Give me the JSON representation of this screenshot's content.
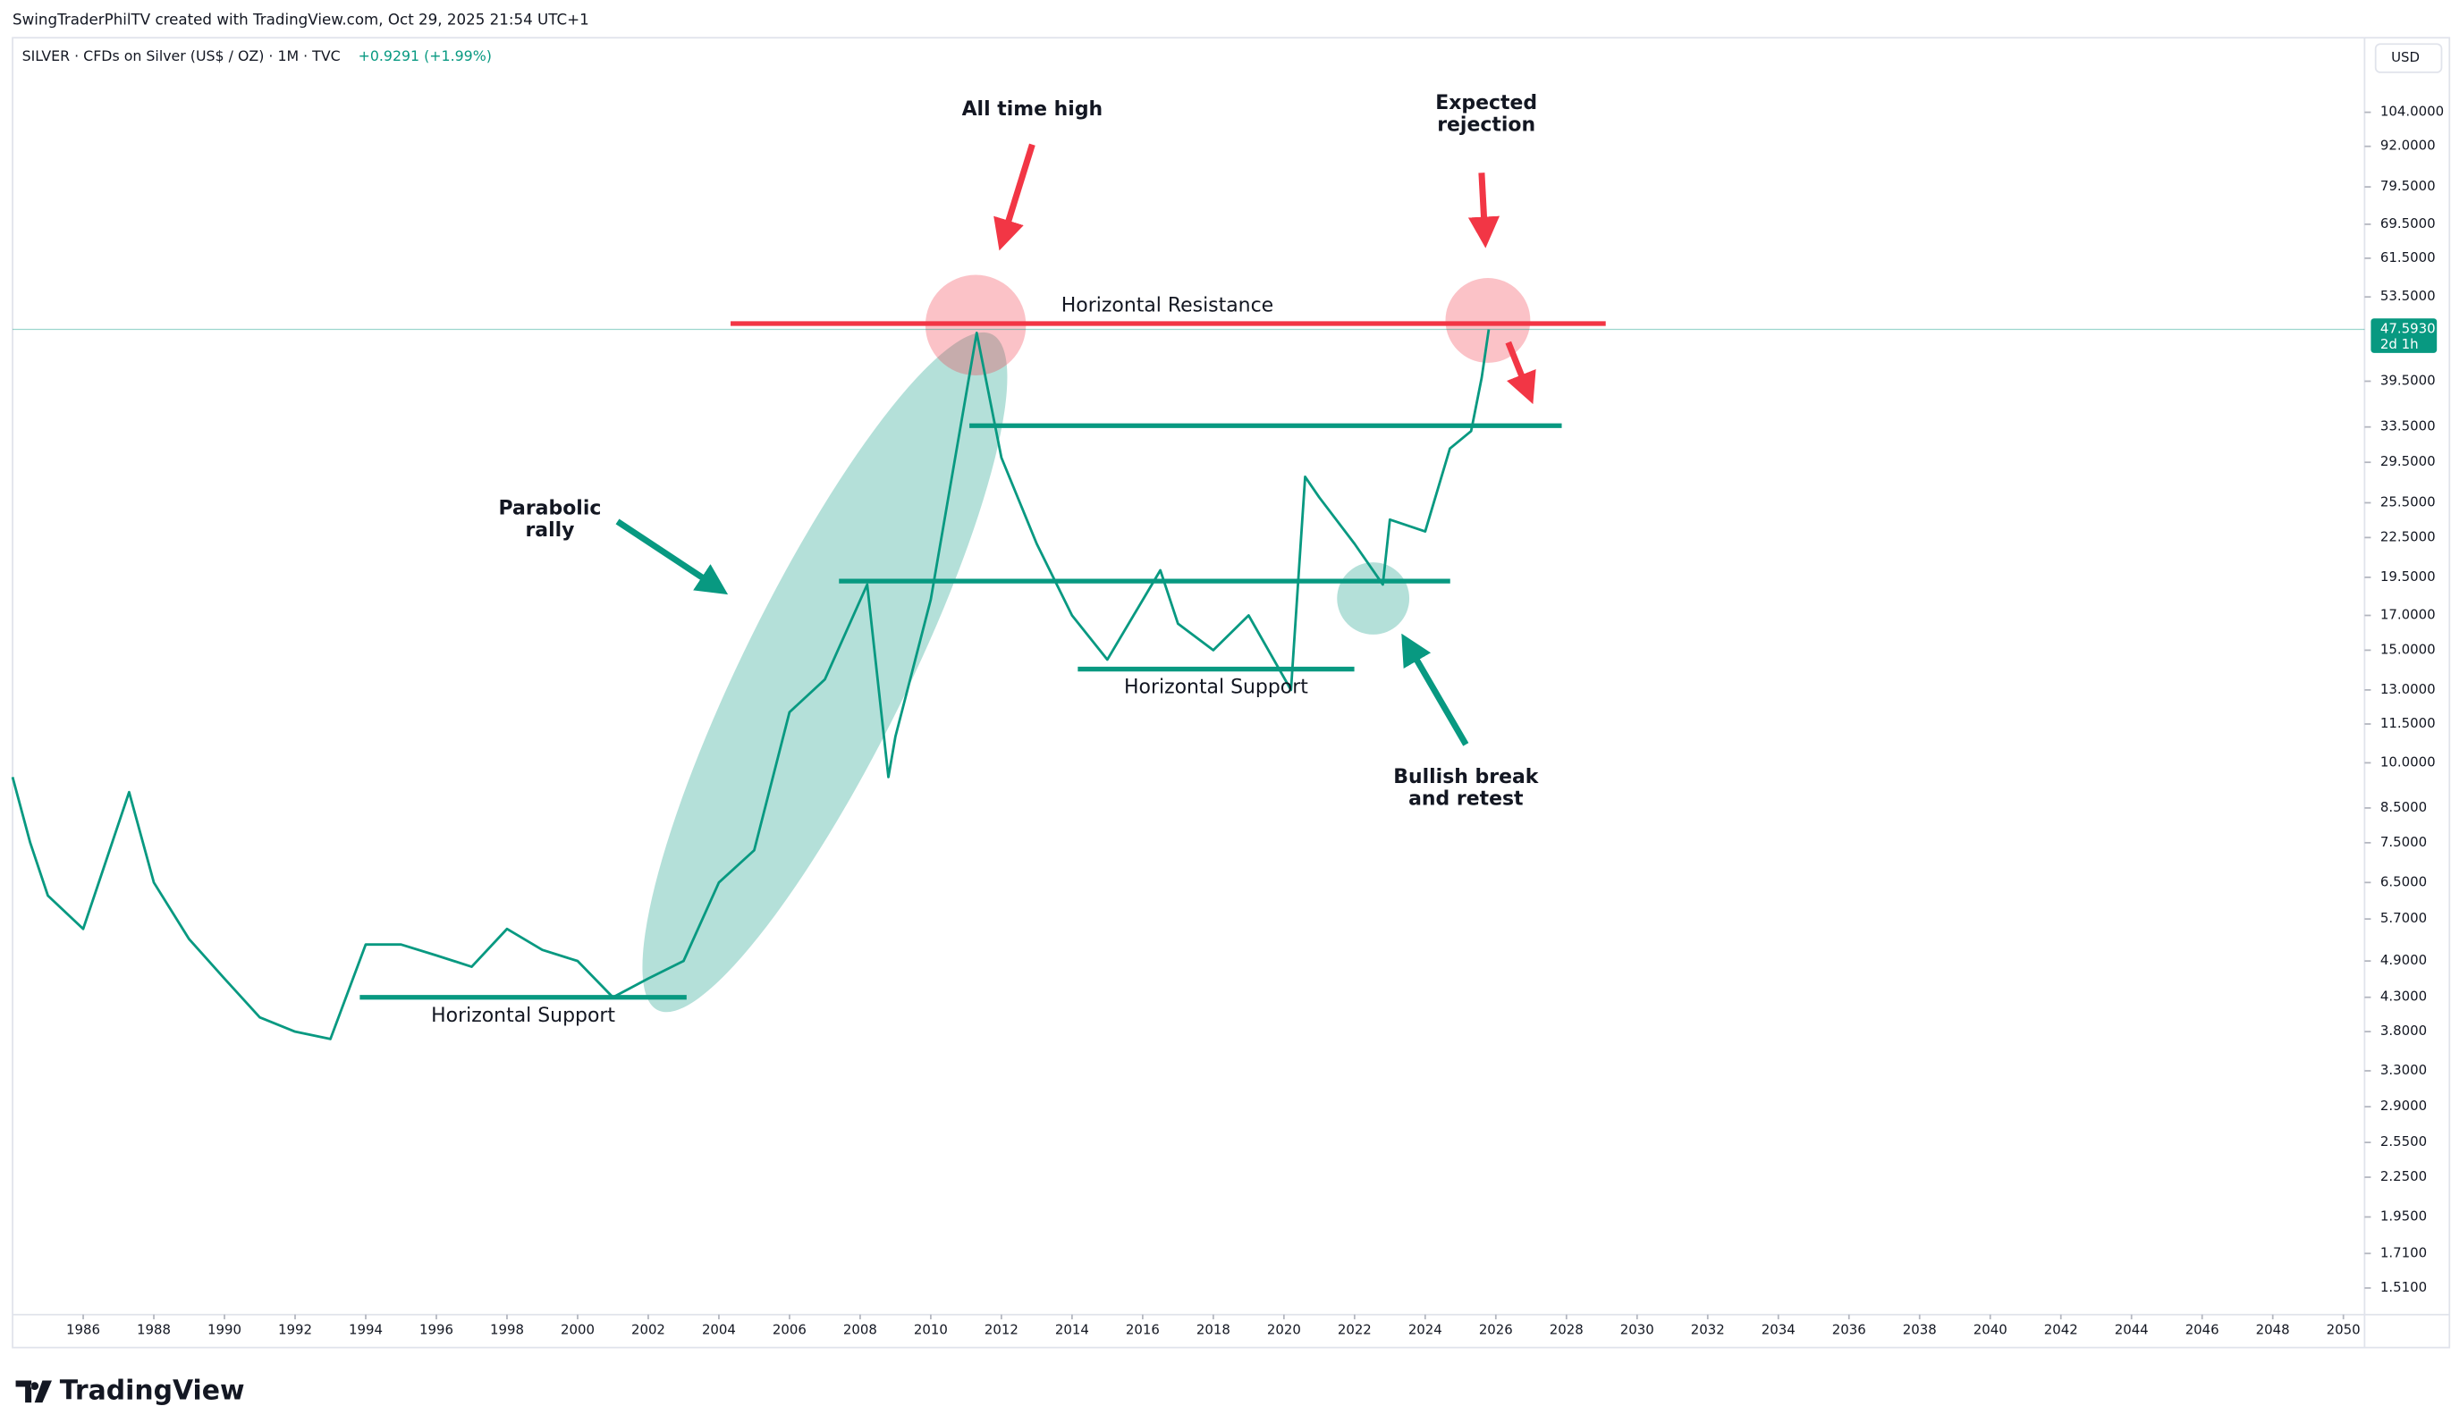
{
  "header": {
    "watermark": "SwingTraderPhilTV created with TradingView.com, Oct 29, 2025 21:54 UTC+1",
    "symbol": "SILVER · CFDs on Silver (US$ / OZ) · 1M · TVC",
    "change": "+0.9291 (+1.99%)",
    "currency": "USD",
    "logo": "TradingView"
  },
  "chart_data": {
    "type": "line",
    "log_scale": true,
    "color": "#089981",
    "x": [
      1984.0,
      1984.5,
      1985,
      1986,
      1987.3,
      1988,
      1989,
      1990,
      1991,
      1992,
      1993,
      1994,
      1995,
      1996,
      1997,
      1998,
      1999,
      2000,
      2001,
      2002,
      2003,
      2004,
      2005,
      2006,
      2007,
      2008.2,
      2008.8,
      2009,
      2010,
      2011.3,
      2012,
      2013,
      2014,
      2015,
      2016.5,
      2017,
      2018,
      2019,
      2020.2,
      2020.6,
      2021,
      2022,
      2022.8,
      2023,
      2024,
      2024.7,
      2025.3,
      2025.6,
      2025.8
    ],
    "values": [
      9.5,
      7.5,
      6.2,
      5.5,
      9.0,
      6.5,
      5.3,
      4.6,
      4.0,
      3.8,
      3.7,
      5.2,
      5.2,
      5.0,
      4.8,
      5.5,
      5.1,
      4.9,
      4.3,
      4.6,
      4.9,
      6.5,
      7.3,
      12.0,
      13.5,
      19.0,
      9.5,
      11.0,
      18.0,
      47.0,
      30.0,
      22.0,
      17.0,
      14.5,
      20.0,
      16.5,
      15.0,
      17.0,
      13.0,
      28.0,
      26.0,
      22.0,
      19.0,
      24.0,
      23.0,
      31.0,
      33.0,
      40.0,
      47.593
    ],
    "xlim": [
      1984,
      2050.6
    ],
    "xticks": [
      1986,
      1988,
      1990,
      1992,
      1994,
      1996,
      1998,
      2000,
      2002,
      2004,
      2006,
      2008,
      2010,
      2012,
      2014,
      2016,
      2018,
      2020,
      2022,
      2024,
      2026,
      2028,
      2030,
      2032,
      2034,
      2036,
      2038,
      2040,
      2042,
      2044,
      2046,
      2048,
      2050
    ],
    "ylim": [
      1.38,
      136
    ],
    "yticks": [
      {
        "value": 104,
        "label": "104.0000"
      },
      {
        "value": 92,
        "label": "92.0000"
      },
      {
        "value": 79.5,
        "label": "79.5000"
      },
      {
        "value": 69.5,
        "label": "69.5000"
      },
      {
        "value": 61.5,
        "label": "61.5000"
      },
      {
        "value": 53.5,
        "label": "53.5000"
      },
      {
        "value": 39.5,
        "label": "39.5000"
      },
      {
        "value": 33.5,
        "label": "33.5000"
      },
      {
        "value": 29.5,
        "label": "29.5000"
      },
      {
        "value": 25.5,
        "label": "25.5000"
      },
      {
        "value": 22.5,
        "label": "22.5000"
      },
      {
        "value": 19.5,
        "label": "19.5000"
      },
      {
        "value": 17,
        "label": "17.0000"
      },
      {
        "value": 15,
        "label": "15.0000"
      },
      {
        "value": 13,
        "label": "13.0000"
      },
      {
        "value": 11.5,
        "label": "11.5000"
      },
      {
        "value": 10,
        "label": "10.0000"
      },
      {
        "value": 8.5,
        "label": "8.5000"
      },
      {
        "value": 7.5,
        "label": "7.5000"
      },
      {
        "value": 6.5,
        "label": "6.5000"
      },
      {
        "value": 5.7,
        "label": "5.7000"
      },
      {
        "value": 4.9,
        "label": "4.9000"
      },
      {
        "value": 4.3,
        "label": "4.3000"
      },
      {
        "value": 3.8,
        "label": "3.8000"
      },
      {
        "value": 3.3,
        "label": "3.3000"
      },
      {
        "value": 2.9,
        "label": "2.9000"
      },
      {
        "value": 2.55,
        "label": "2.5500"
      },
      {
        "value": 2.25,
        "label": "2.2500"
      },
      {
        "value": 1.95,
        "label": "1.9500"
      },
      {
        "value": 1.71,
        "label": "1.7100"
      },
      {
        "value": 1.51,
        "label": "1.5100"
      }
    ],
    "last_price": {
      "value": 47.593,
      "label": "47.5930"
    },
    "countdown": "2d 1h",
    "annotations": [
      [
        "All time high"
      ],
      [
        "Expected",
        "rejection"
      ],
      [
        "Horizontal Resistance"
      ],
      [
        "Parabolic",
        "rally"
      ],
      [
        "Horizontal Support"
      ],
      [
        "Horizontal Support"
      ],
      [
        "Bullish break",
        "and retest"
      ]
    ]
  }
}
